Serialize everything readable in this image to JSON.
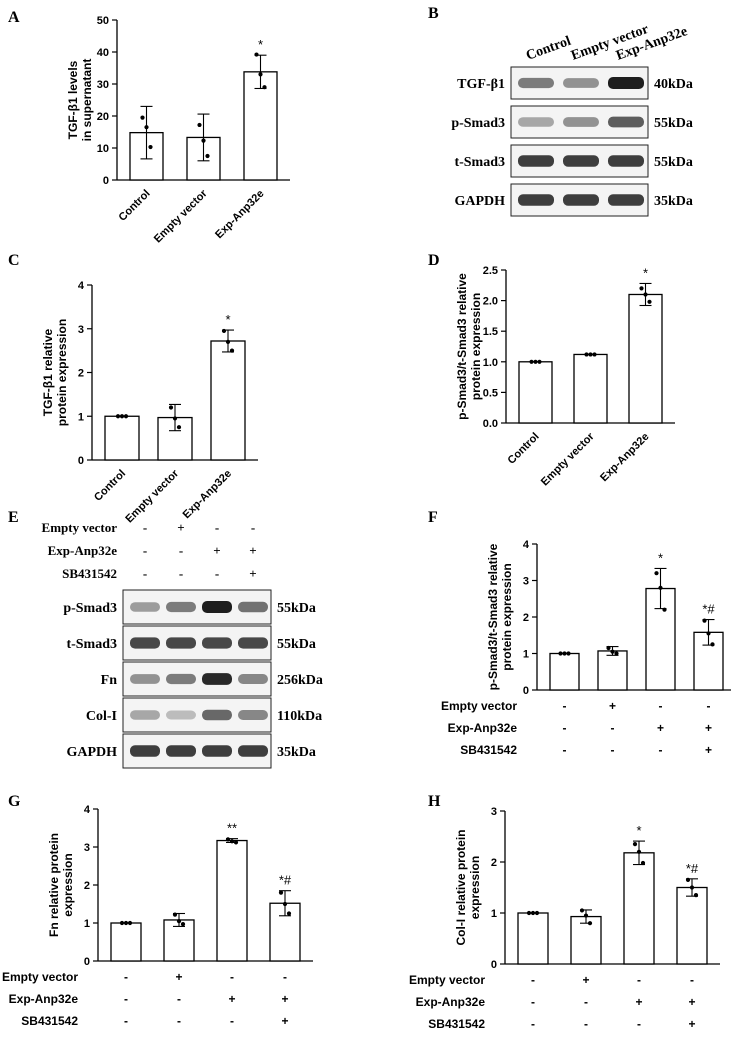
{
  "panel_letters": [
    "A",
    "B",
    "C",
    "D",
    "E",
    "F",
    "G",
    "H"
  ],
  "treatment_table": {
    "rows": [
      "Empty vector",
      "Exp-Anp32e",
      "SB431542"
    ],
    "signs": [
      [
        "-",
        "+",
        "-",
        "-"
      ],
      [
        "-",
        "-",
        "+",
        "+"
      ],
      [
        "-",
        "-",
        "-",
        "+"
      ]
    ]
  },
  "blot_B": {
    "lanes": [
      "Control",
      "Empty vector",
      "Exp-Anp32e"
    ],
    "bands": [
      {
        "label": "TGF-β1",
        "size": "40kDa",
        "intensities": [
          0.55,
          0.45,
          1.0
        ]
      },
      {
        "label": "p-Smad3",
        "size": "55kDa",
        "intensities": [
          0.35,
          0.45,
          0.7
        ]
      },
      {
        "label": "t-Smad3",
        "size": "55kDa",
        "intensities": [
          0.85,
          0.85,
          0.85
        ]
      },
      {
        "label": "GAPDH",
        "size": "35kDa",
        "intensities": [
          0.85,
          0.85,
          0.85
        ]
      }
    ]
  },
  "blot_E": {
    "bands": [
      {
        "label": "p-Smad3",
        "size": "55kDa",
        "intensities": [
          0.4,
          0.55,
          1.0,
          0.6
        ]
      },
      {
        "label": "t-Smad3",
        "size": "55kDa",
        "intensities": [
          0.8,
          0.8,
          0.8,
          0.8
        ]
      },
      {
        "label": "Fn",
        "size": "256kDa",
        "intensities": [
          0.45,
          0.55,
          0.95,
          0.5
        ]
      },
      {
        "label": "Col-I",
        "size": "110kDa",
        "intensities": [
          0.35,
          0.25,
          0.65,
          0.5
        ]
      },
      {
        "label": "GAPDH",
        "size": "35kDa",
        "intensities": [
          0.85,
          0.85,
          0.85,
          0.85
        ]
      }
    ]
  },
  "chart_data": [
    {
      "panel": "A",
      "type": "bar",
      "categories": [
        "Control",
        "Empty vector",
        "Exp-Anp32e"
      ],
      "values": [
        14.8,
        13.3,
        33.8
      ],
      "errors": [
        8.2,
        7.3,
        5.2
      ],
      "points": [
        [
          19.5,
          16.5,
          10.3
        ],
        [
          17.2,
          12.3,
          7.5
        ],
        [
          39.2,
          33.0,
          29.0
        ]
      ],
      "marks": [
        "",
        "",
        "*"
      ],
      "ylabel": [
        "TGF-β1 levels",
        "in supernatant"
      ],
      "ylim": [
        0,
        50
      ],
      "yticks": [
        0,
        10,
        20,
        30,
        40,
        50
      ]
    },
    {
      "panel": "C",
      "type": "bar",
      "categories": [
        "Control",
        "Empty vector",
        "Exp-Anp32e"
      ],
      "values": [
        1.0,
        0.97,
        2.72
      ],
      "errors": [
        0,
        0.3,
        0.25
      ],
      "points": [
        [
          1.0,
          1.0,
          1.0
        ],
        [
          1.2,
          0.95,
          0.75
        ],
        [
          2.95,
          2.7,
          2.5
        ]
      ],
      "marks": [
        "",
        "",
        "*"
      ],
      "ylabel": [
        "TGF-β1 relative",
        "protein expression"
      ],
      "ylim": [
        0,
        4
      ],
      "yticks": [
        0,
        1,
        2,
        3,
        4
      ]
    },
    {
      "panel": "D",
      "type": "bar",
      "categories": [
        "Control",
        "Empty vector",
        "Exp-Anp32e"
      ],
      "values": [
        1.0,
        1.12,
        2.1
      ],
      "errors": [
        0,
        0,
        0.18
      ],
      "points": [
        [
          1.0,
          1.0,
          1.0
        ],
        [
          1.12,
          1.12,
          1.12
        ],
        [
          2.2,
          2.1,
          1.98
        ]
      ],
      "marks": [
        "",
        "",
        "*"
      ],
      "ylabel": [
        "p-Smad3/t-Smad3 relative",
        "protein expression"
      ],
      "ylim": [
        0,
        2.5
      ],
      "yticks": [
        "0.0",
        "0.5",
        "1.0",
        "1.5",
        "2.0",
        "2.5"
      ]
    },
    {
      "panel": "F",
      "type": "bar",
      "values": [
        1.0,
        1.07,
        2.78,
        1.58
      ],
      "errors": [
        0,
        0.12,
        0.55,
        0.35
      ],
      "points": [
        [
          1.0,
          1.0,
          1.0
        ],
        [
          1.15,
          1.05,
          1.0
        ],
        [
          3.2,
          2.8,
          2.2
        ],
        [
          1.9,
          1.55,
          1.25
        ]
      ],
      "marks": [
        "",
        "",
        "*",
        "*#"
      ],
      "ylabel": [
        "p-Smad3/t-Smad3 relative",
        "protein expression"
      ],
      "ylim": [
        0,
        4
      ],
      "yticks": [
        0,
        1,
        2,
        3,
        4
      ]
    },
    {
      "panel": "G",
      "type": "bar",
      "values": [
        1.0,
        1.08,
        3.17,
        1.52
      ],
      "errors": [
        0,
        0.17,
        0.05,
        0.33
      ],
      "points": [
        [
          1.0,
          1.0,
          1.0
        ],
        [
          1.22,
          1.05,
          0.97
        ],
        [
          3.2,
          3.15,
          3.12
        ],
        [
          1.8,
          1.5,
          1.25
        ]
      ],
      "marks": [
        "",
        "",
        "**",
        "*#"
      ],
      "ylabel": [
        "Fn relative protein",
        "expression"
      ],
      "ylim": [
        0,
        4
      ],
      "yticks": [
        0,
        1,
        2,
        3,
        4
      ]
    },
    {
      "panel": "H",
      "type": "bar",
      "values": [
        1.0,
        0.93,
        2.18,
        1.5
      ],
      "errors": [
        0,
        0.13,
        0.23,
        0.17
      ],
      "points": [
        [
          1.0,
          1.0,
          1.0
        ],
        [
          1.05,
          0.95,
          0.8
        ],
        [
          2.35,
          2.2,
          1.98
        ],
        [
          1.65,
          1.5,
          1.35
        ]
      ],
      "marks": [
        "",
        "",
        "*",
        "*#"
      ],
      "ylabel": [
        "Col-I relative protein",
        "expression"
      ],
      "ylim": [
        0,
        3
      ],
      "yticks": [
        0,
        1,
        2,
        3
      ]
    }
  ]
}
